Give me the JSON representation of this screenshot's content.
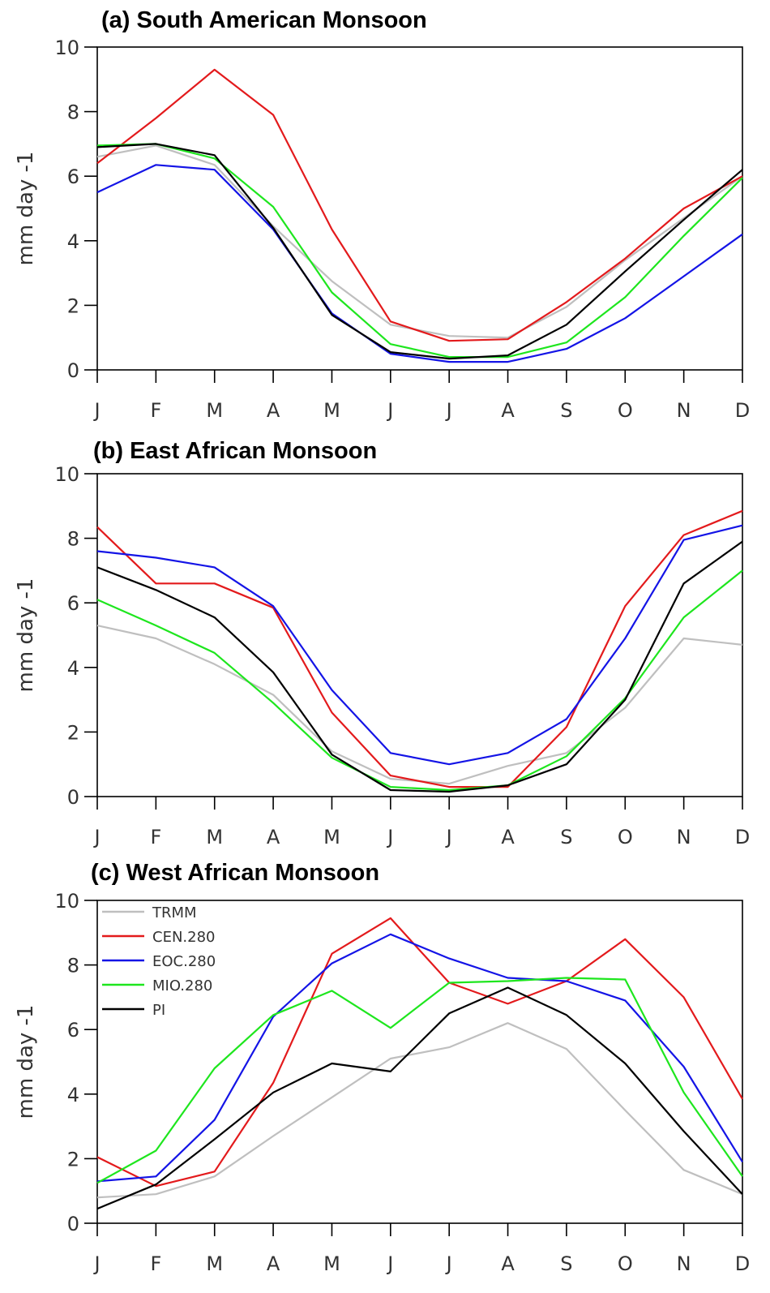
{
  "chart_data": [
    {
      "type": "line",
      "title": "(a) South American Monsoon",
      "ylabel": "mm day -1",
      "xlabel": "",
      "categories": [
        "J",
        "F",
        "M",
        "A",
        "M",
        "J",
        "J",
        "A",
        "S",
        "O",
        "N",
        "D"
      ],
      "ylim": [
        0,
        10
      ],
      "yticks": [
        0,
        2,
        4,
        6,
        8,
        10
      ],
      "grid": false,
      "legend": null,
      "series": [
        {
          "name": "TRMM",
          "color": "#bfbfbf",
          "values": [
            6.6,
            6.95,
            6.35,
            4.45,
            2.75,
            1.4,
            1.05,
            1.0,
            1.95,
            3.4,
            4.7,
            6.0
          ]
        },
        {
          "name": "CEN.280",
          "color": "#e31a1c",
          "values": [
            6.4,
            7.8,
            9.3,
            7.9,
            4.35,
            1.5,
            0.9,
            0.95,
            2.1,
            3.45,
            5.0,
            6.0
          ]
        },
        {
          "name": "EOC.280",
          "color": "#1414e6",
          "values": [
            5.5,
            6.35,
            6.2,
            4.35,
            1.75,
            0.5,
            0.25,
            0.25,
            0.65,
            1.6,
            2.9,
            4.2
          ]
        },
        {
          "name": "MIO.280",
          "color": "#1ee61e",
          "values": [
            6.95,
            7.0,
            6.55,
            5.05,
            2.4,
            0.8,
            0.4,
            0.4,
            0.85,
            2.25,
            4.15,
            5.95
          ]
        },
        {
          "name": "PI",
          "color": "#000000",
          "values": [
            6.9,
            7.0,
            6.65,
            4.4,
            1.7,
            0.55,
            0.35,
            0.45,
            1.4,
            3.05,
            4.65,
            6.2
          ]
        }
      ]
    },
    {
      "type": "line",
      "title": "(b) East African Monsoon",
      "ylabel": "mm day -1",
      "xlabel": "",
      "categories": [
        "J",
        "F",
        "M",
        "A",
        "M",
        "J",
        "J",
        "A",
        "S",
        "O",
        "N",
        "D"
      ],
      "ylim": [
        0,
        10
      ],
      "yticks": [
        0,
        2,
        4,
        6,
        8,
        10
      ],
      "grid": false,
      "legend": null,
      "series": [
        {
          "name": "TRMM",
          "color": "#bfbfbf",
          "values": [
            5.3,
            4.9,
            4.1,
            3.15,
            1.4,
            0.55,
            0.4,
            0.95,
            1.35,
            2.75,
            4.9,
            4.7
          ]
        },
        {
          "name": "CEN.280",
          "color": "#e31a1c",
          "values": [
            8.35,
            6.6,
            6.6,
            5.85,
            2.6,
            0.65,
            0.3,
            0.3,
            2.15,
            5.9,
            8.1,
            8.85
          ]
        },
        {
          "name": "EOC.280",
          "color": "#1414e6",
          "values": [
            7.6,
            7.4,
            7.1,
            5.9,
            3.3,
            1.35,
            1.0,
            1.35,
            2.4,
            4.9,
            7.95,
            8.4
          ]
        },
        {
          "name": "MIO.280",
          "color": "#1ee61e",
          "values": [
            6.1,
            5.3,
            4.45,
            2.9,
            1.2,
            0.3,
            0.2,
            0.35,
            1.25,
            3.05,
            5.55,
            7.0
          ]
        },
        {
          "name": "PI",
          "color": "#000000",
          "values": [
            7.1,
            6.4,
            5.55,
            3.85,
            1.3,
            0.2,
            0.15,
            0.35,
            1.0,
            3.0,
            6.6,
            7.9
          ]
        }
      ]
    },
    {
      "type": "line",
      "title": "(c) West African Monsoon",
      "ylabel": "mm day -1",
      "xlabel": "",
      "categories": [
        "J",
        "F",
        "M",
        "A",
        "M",
        "J",
        "J",
        "A",
        "S",
        "O",
        "N",
        "D"
      ],
      "ylim": [
        0,
        10
      ],
      "yticks": [
        0,
        2,
        4,
        6,
        8,
        10
      ],
      "grid": false,
      "legend": "top-left",
      "series": [
        {
          "name": "TRMM",
          "color": "#bfbfbf",
          "values": [
            0.8,
            0.9,
            1.45,
            2.7,
            3.9,
            5.1,
            5.45,
            6.2,
            5.4,
            3.5,
            1.65,
            0.9
          ]
        },
        {
          "name": "CEN.280",
          "color": "#e31a1c",
          "values": [
            2.05,
            1.15,
            1.6,
            4.35,
            8.35,
            9.45,
            7.45,
            6.8,
            7.5,
            8.8,
            7.0,
            3.85
          ]
        },
        {
          "name": "EOC.280",
          "color": "#1414e6",
          "values": [
            1.3,
            1.45,
            3.2,
            6.4,
            8.05,
            8.95,
            8.2,
            7.6,
            7.5,
            6.9,
            4.85,
            1.9
          ]
        },
        {
          "name": "MIO.280",
          "color": "#1ee61e",
          "values": [
            1.25,
            2.25,
            4.8,
            6.45,
            7.2,
            6.05,
            7.45,
            7.5,
            7.6,
            7.55,
            4.05,
            1.45
          ]
        },
        {
          "name": "PI",
          "color": "#000000",
          "values": [
            0.45,
            1.2,
            2.6,
            4.05,
            4.95,
            4.7,
            6.5,
            7.3,
            6.45,
            4.95,
            2.85,
            0.9
          ]
        }
      ]
    }
  ]
}
